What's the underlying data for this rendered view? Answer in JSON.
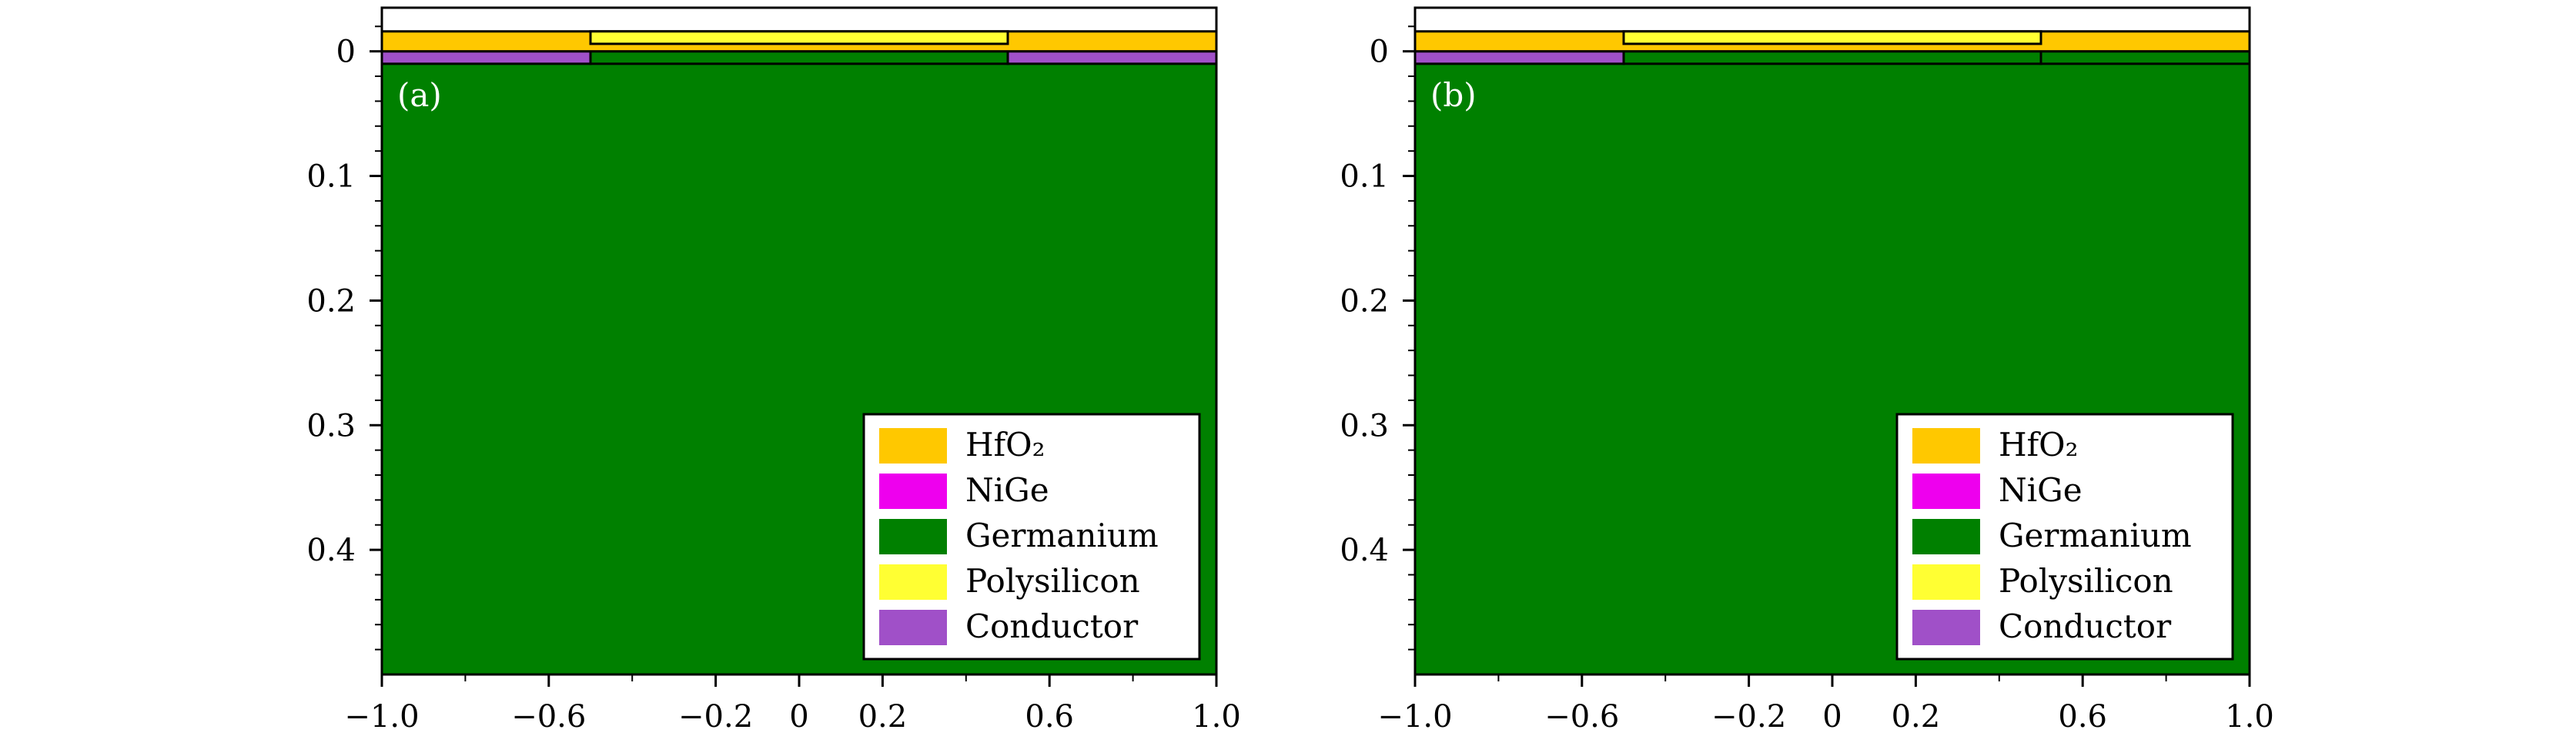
{
  "colors": {
    "HfO2": "#FFC800",
    "NiGe": "#EE00EE",
    "Germanium": "#008000",
    "Polysilicon": "#FFFF33",
    "Conductor": "#A050C8"
  },
  "chart_data": [
    {
      "type": "area",
      "panel_label": "(a)",
      "title": "",
      "xlabel": "",
      "ylabel": "",
      "xlim": [
        -1.0,
        1.0
      ],
      "ylim": [
        0.5,
        -0.035
      ],
      "y_inverted": true,
      "x_ticks": [
        "−1.0",
        "−0.6",
        "−0.2",
        "0",
        "0.2",
        "0.6",
        "1.0"
      ],
      "x_tick_values": [
        -1.0,
        -0.6,
        -0.2,
        0,
        0.2,
        0.6,
        1.0
      ],
      "y_ticks": [
        "0",
        "0.1",
        "0.2",
        "0.3",
        "0.4"
      ],
      "y_tick_values": [
        0,
        0.1,
        0.2,
        0.3,
        0.4
      ],
      "regions": [
        {
          "material": "Germanium",
          "x": [
            -1.0,
            1.0
          ],
          "y": [
            0.01,
            0.5
          ]
        },
        {
          "material": "Conductor",
          "x": [
            -1.0,
            -0.5
          ],
          "y": [
            0.0,
            0.01
          ]
        },
        {
          "material": "Germanium",
          "x": [
            -0.5,
            0.5
          ],
          "y": [
            0.0,
            0.01
          ]
        },
        {
          "material": "Conductor",
          "x": [
            0.5,
            1.0
          ],
          "y": [
            0.0,
            0.01
          ]
        },
        {
          "material": "HfO2",
          "x": [
            -1.0,
            1.0
          ],
          "y": [
            -0.016,
            0.0
          ]
        },
        {
          "material": "Polysilicon",
          "x": [
            -0.5,
            0.5
          ],
          "y": [
            -0.016,
            -0.006
          ]
        }
      ],
      "legend": [
        "HfO₂",
        "NiGe",
        "Germanium",
        "Polysilicon",
        "Conductor"
      ],
      "legend_materials": [
        "HfO2",
        "NiGe",
        "Germanium",
        "Polysilicon",
        "Conductor"
      ],
      "legend_position": "lower-right"
    },
    {
      "type": "area",
      "panel_label": "(b)",
      "title": "",
      "xlabel": "",
      "ylabel": "",
      "xlim": [
        -1.0,
        1.0
      ],
      "ylim": [
        0.5,
        -0.035
      ],
      "y_inverted": true,
      "x_ticks": [
        "−1.0",
        "−0.6",
        "−0.2",
        "0",
        "0.2",
        "0.6",
        "1.0"
      ],
      "x_tick_values": [
        -1.0,
        -0.6,
        -0.2,
        0,
        0.2,
        0.6,
        1.0
      ],
      "y_ticks": [
        "0",
        "0.1",
        "0.2",
        "0.3",
        "0.4"
      ],
      "y_tick_values": [
        0,
        0.1,
        0.2,
        0.3,
        0.4
      ],
      "regions": [
        {
          "material": "Germanium",
          "x": [
            -1.0,
            1.0
          ],
          "y": [
            0.01,
            0.5
          ]
        },
        {
          "material": "Conductor",
          "x": [
            -1.0,
            -0.5
          ],
          "y": [
            0.0,
            0.01
          ]
        },
        {
          "material": "Germanium",
          "x": [
            -0.5,
            0.5
          ],
          "y": [
            0.0,
            0.01
          ]
        },
        {
          "material": "Germanium",
          "x": [
            0.5,
            1.0
          ],
          "y": [
            0.0,
            0.01
          ]
        },
        {
          "material": "HfO2",
          "x": [
            -1.0,
            1.0
          ],
          "y": [
            -0.016,
            0.0
          ]
        },
        {
          "material": "Polysilicon",
          "x": [
            -0.5,
            0.5
          ],
          "y": [
            -0.016,
            -0.006
          ]
        }
      ],
      "legend": [
        "HfO₂",
        "NiGe",
        "Germanium",
        "Polysilicon",
        "Conductor"
      ],
      "legend_materials": [
        "HfO2",
        "NiGe",
        "Germanium",
        "Polysilicon",
        "Conductor"
      ],
      "legend_position": "lower-right"
    }
  ]
}
